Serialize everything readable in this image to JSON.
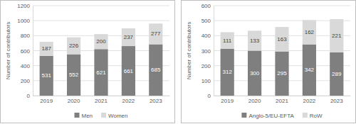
{
  "chart_data": [
    {
      "type": "bar",
      "stacked": true,
      "data_labels": true,
      "grid": true,
      "legend": "bottom",
      "y_label": "Number of contributors",
      "categories": [
        "2019",
        "2020",
        "2021",
        "2022",
        "2023"
      ],
      "series": [
        {
          "name": "Men",
          "color": "#7f7f7f",
          "values": [
            531,
            552,
            621,
            661,
            685
          ]
        },
        {
          "name": "Women",
          "color": "#d9d9d9",
          "values": [
            187,
            226,
            200,
            237,
            277
          ]
        }
      ],
      "ylim": [
        0,
        1200
      ],
      "yticks": [
        0,
        200,
        400,
        600,
        800,
        1000,
        1200
      ]
    },
    {
      "type": "bar",
      "stacked": true,
      "data_labels": true,
      "grid": true,
      "legend": "bottom",
      "y_label": "Number of contributors",
      "categories": [
        "2019",
        "2020",
        "2021",
        "2022",
        "2023"
      ],
      "series": [
        {
          "name": "Anglo-5/EU-EFTA",
          "color": "#7f7f7f",
          "values": [
            312,
            300,
            295,
            342,
            289
          ]
        },
        {
          "name": "RoW",
          "color": "#d9d9d9",
          "values": [
            111,
            133,
            163,
            162,
            221
          ]
        }
      ],
      "ylim": [
        0,
        600
      ],
      "yticks": [
        0,
        100,
        200,
        300,
        400,
        500,
        600
      ]
    }
  ]
}
